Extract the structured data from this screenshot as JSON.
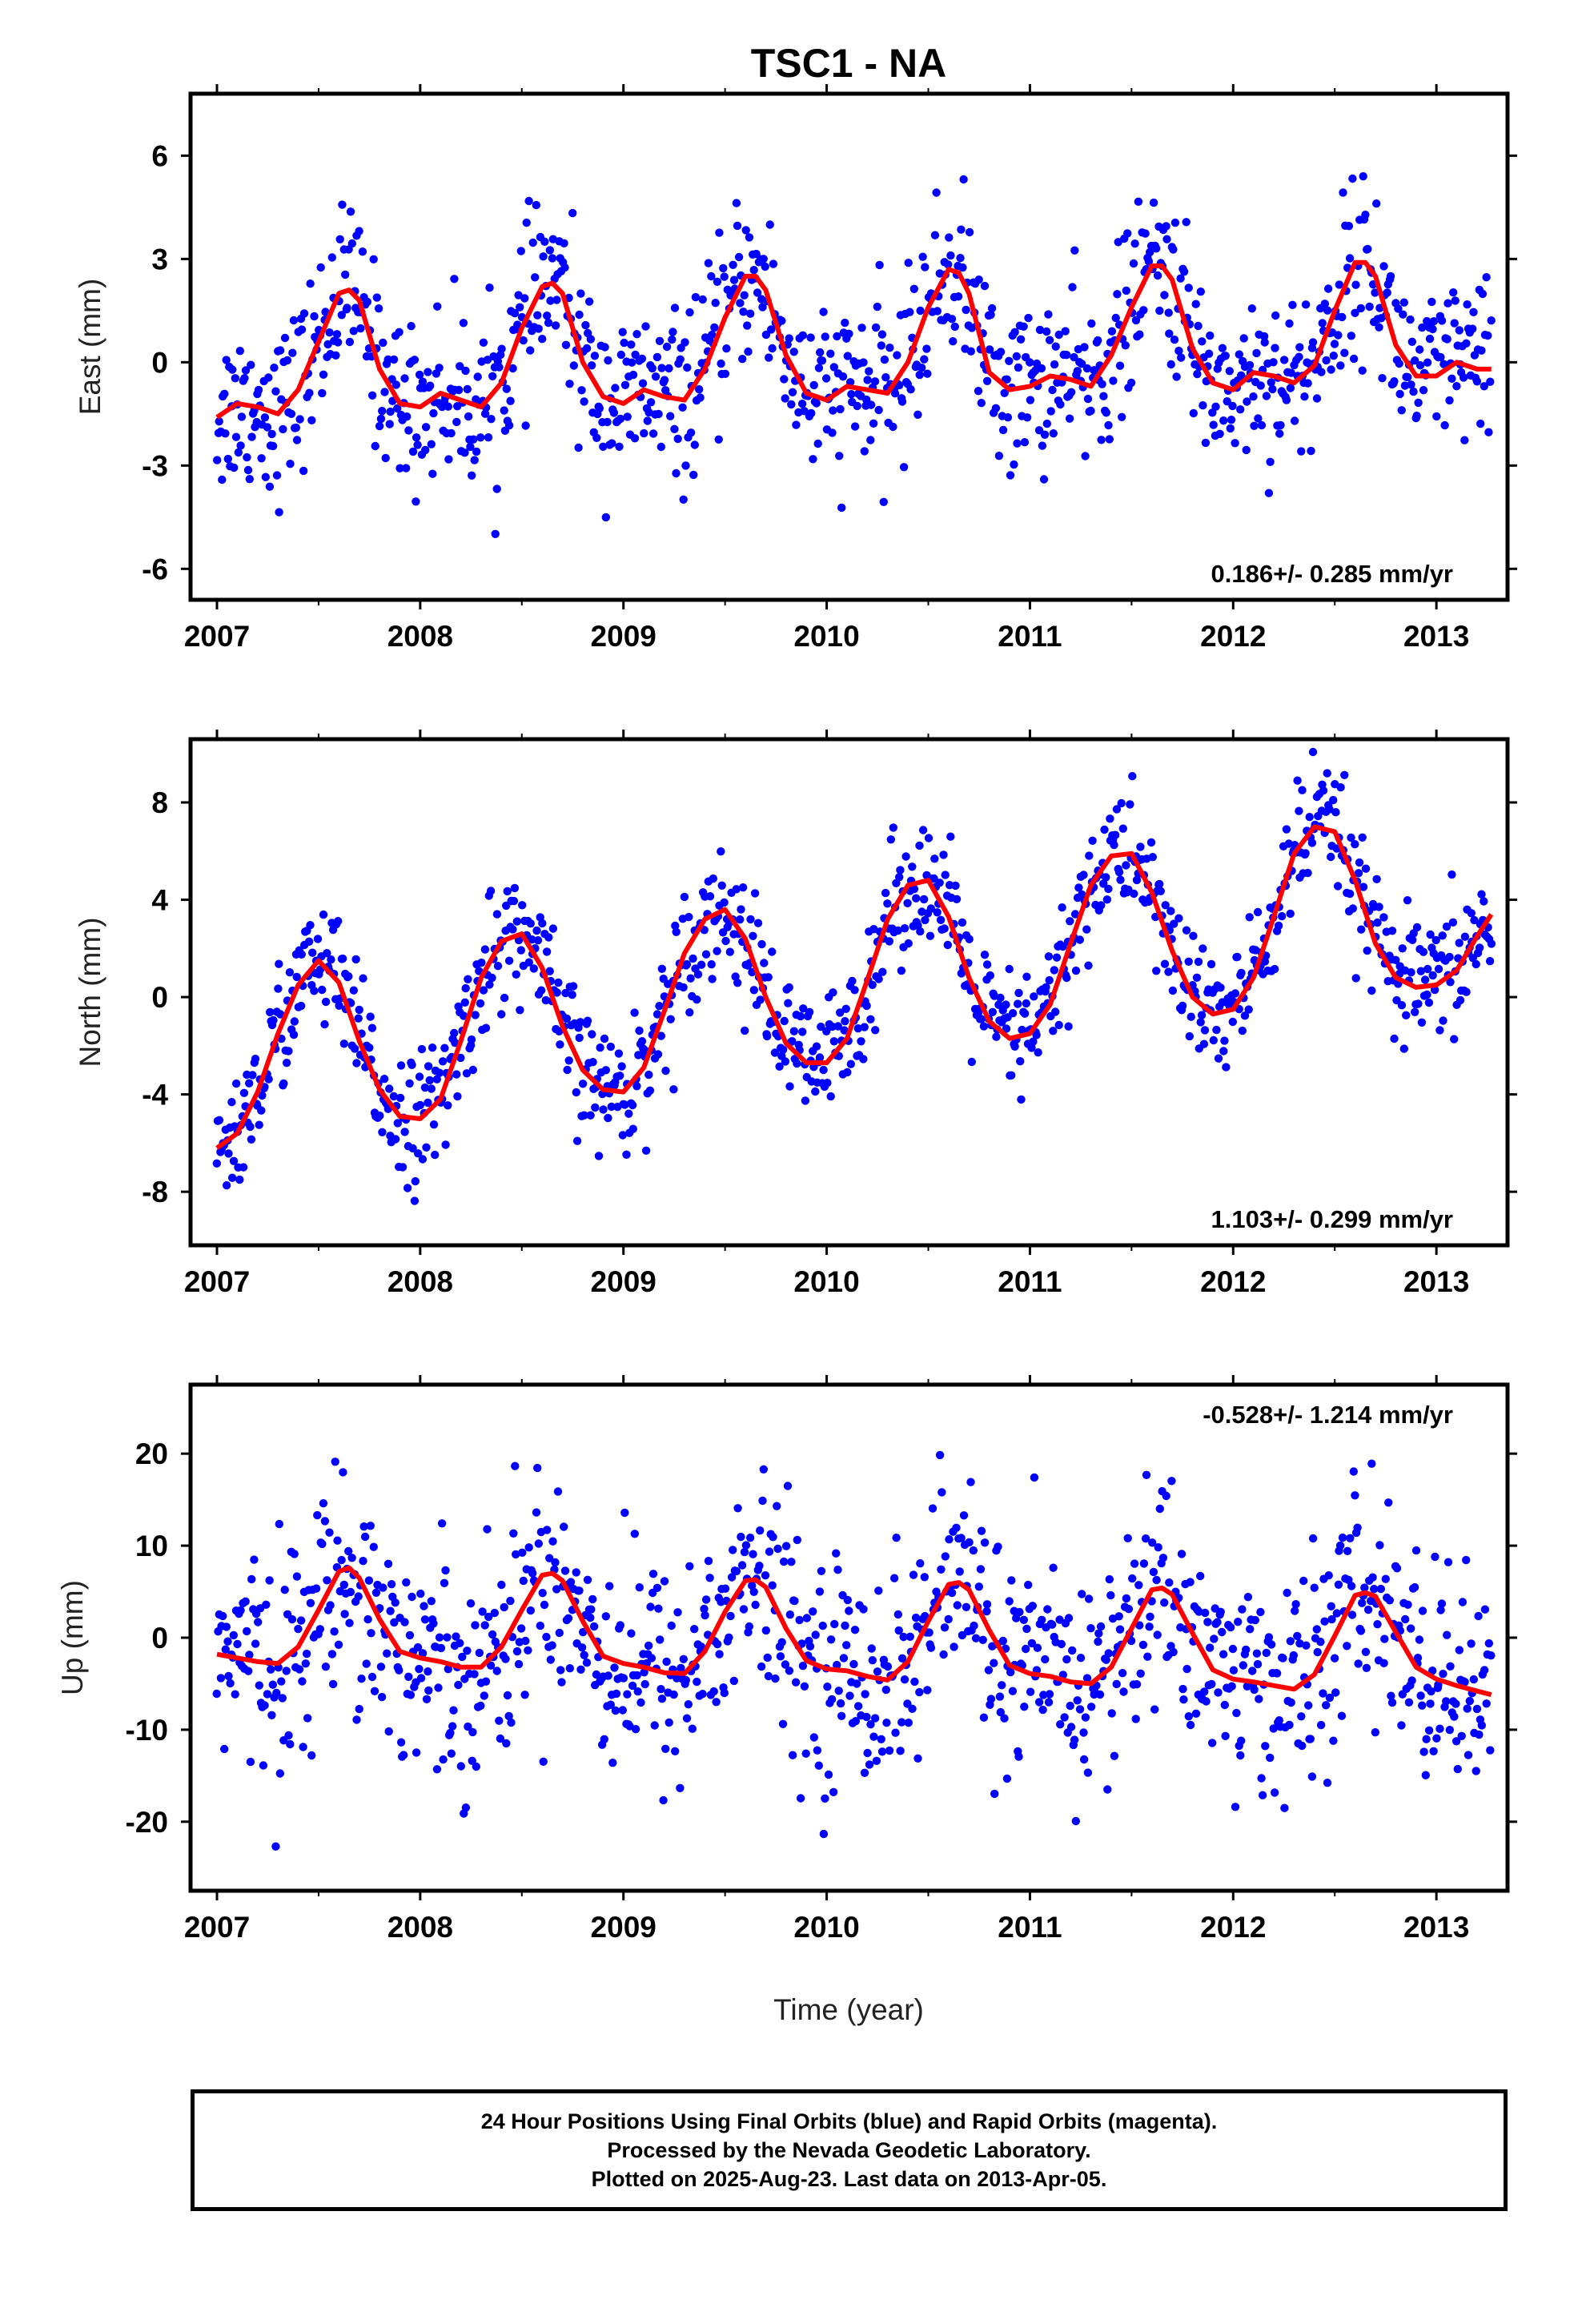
{
  "title": "TSC1 - NA",
  "xlabel": "Time (year)",
  "footer": {
    "line1": "24 Hour Positions Using Final Orbits (blue) and Rapid Orbits (magenta).",
    "line2": "Processed by the Nevada Geodetic Laboratory.",
    "line3": "Plotted on 2025-Aug-23. Last data on 2013-Apr-05."
  },
  "colors": {
    "points": "#0000ff",
    "model": "#ff0000",
    "axes": "#000000"
  },
  "chart_data": [
    {
      "type": "scatter",
      "component": "east",
      "ylabel": "East (mm)",
      "rate_label": "0.186+/- 0.285 mm/yr",
      "rate_position": "bottom-right",
      "xlim": [
        2006.87,
        2013.35
      ],
      "ylim": [
        -6.9,
        7.8
      ],
      "xticks": [
        "2007",
        "2008",
        "2009",
        "2010",
        "2011",
        "2012",
        "2013"
      ],
      "yticks": [
        "-6",
        "-3",
        "0",
        "3",
        "6"
      ],
      "model_curve": {
        "x": [
          2007.0,
          2007.1,
          2007.2,
          2007.3,
          2007.4,
          2007.5,
          2007.6,
          2007.65,
          2007.7,
          2007.8,
          2007.9,
          2008.0,
          2008.1,
          2008.2,
          2008.3,
          2008.4,
          2008.5,
          2008.6,
          2008.65,
          2008.7,
          2008.8,
          2008.9,
          2009.0,
          2009.1,
          2009.2,
          2009.3,
          2009.4,
          2009.5,
          2009.6,
          2009.65,
          2009.7,
          2009.8,
          2009.9,
          2010.0,
          2010.1,
          2010.2,
          2010.3,
          2010.4,
          2010.5,
          2010.6,
          2010.65,
          2010.7,
          2010.8,
          2010.9,
          2011.0,
          2011.1,
          2011.2,
          2011.3,
          2011.4,
          2011.5,
          2011.6,
          2011.65,
          2011.7,
          2011.8,
          2011.9,
          2012.0,
          2012.1,
          2012.2,
          2012.3,
          2012.4,
          2012.5,
          2012.6,
          2012.65,
          2012.7,
          2012.8,
          2012.9,
          2013.0,
          2013.1,
          2013.2,
          2013.27
        ],
        "y": [
          -1.6,
          -1.2,
          -1.3,
          -1.5,
          -0.8,
          0.6,
          2.0,
          2.1,
          1.8,
          -0.2,
          -1.2,
          -1.3,
          -0.9,
          -1.1,
          -1.3,
          -0.6,
          1.0,
          2.2,
          2.3,
          2.0,
          0.0,
          -1.0,
          -1.2,
          -0.8,
          -1.0,
          -1.1,
          -0.2,
          1.3,
          2.5,
          2.5,
          2.1,
          0.2,
          -0.9,
          -1.1,
          -0.7,
          -0.8,
          -0.9,
          0.0,
          1.6,
          2.7,
          2.6,
          2.0,
          -0.3,
          -0.8,
          -0.7,
          -0.4,
          -0.5,
          -0.7,
          0.2,
          1.6,
          2.8,
          2.8,
          2.4,
          0.4,
          -0.6,
          -0.8,
          -0.3,
          -0.4,
          -0.6,
          -0.1,
          1.5,
          2.9,
          2.9,
          2.5,
          0.5,
          -0.4,
          -0.4,
          0.0,
          -0.2,
          -0.2
        ]
      },
      "point_scatter": {
        "sigma_mm": 1.2,
        "points_per_year": 170,
        "start": 2007.0,
        "end": 2013.27
      }
    },
    {
      "type": "scatter",
      "component": "north",
      "ylabel": "North (mm)",
      "rate_label": "1.103+/- 0.299 mm/yr",
      "rate_position": "bottom-right",
      "xlim": [
        2006.87,
        2013.35
      ],
      "ylim": [
        -10.2,
        10.6
      ],
      "xticks": [
        "2007",
        "2008",
        "2009",
        "2010",
        "2011",
        "2012",
        "2013"
      ],
      "yticks": [
        "-8",
        "-4",
        "0",
        "4",
        "8"
      ],
      "model_curve": {
        "x": [
          2007.0,
          2007.1,
          2007.2,
          2007.3,
          2007.4,
          2007.5,
          2007.6,
          2007.7,
          2007.8,
          2007.9,
          2008.0,
          2008.1,
          2008.2,
          2008.3,
          2008.4,
          2008.5,
          2008.6,
          2008.7,
          2008.8,
          2008.9,
          2009.0,
          2009.1,
          2009.2,
          2009.3,
          2009.4,
          2009.5,
          2009.6,
          2009.7,
          2009.8,
          2009.9,
          2010.0,
          2010.1,
          2010.2,
          2010.3,
          2010.4,
          2010.5,
          2010.6,
          2010.7,
          2010.8,
          2010.9,
          2011.0,
          2011.1,
          2011.2,
          2011.3,
          2011.4,
          2011.5,
          2011.6,
          2011.7,
          2011.8,
          2011.9,
          2012.0,
          2012.1,
          2012.2,
          2012.3,
          2012.4,
          2012.5,
          2012.6,
          2012.7,
          2012.8,
          2012.9,
          2013.0,
          2013.1,
          2013.2,
          2013.27
        ],
        "y": [
          -6.2,
          -5.6,
          -3.9,
          -1.5,
          0.5,
          1.5,
          0.6,
          -1.8,
          -3.8,
          -4.9,
          -5.0,
          -4.2,
          -1.8,
          0.8,
          2.3,
          2.6,
          1.2,
          -1.2,
          -3.0,
          -3.8,
          -3.9,
          -2.9,
          -0.6,
          1.8,
          3.2,
          3.6,
          2.4,
          0.0,
          -1.9,
          -2.7,
          -2.7,
          -1.7,
          0.7,
          3.2,
          4.6,
          4.8,
          3.3,
          0.8,
          -1.0,
          -1.7,
          -1.5,
          -0.3,
          2.2,
          4.6,
          5.8,
          5.9,
          4.3,
          1.9,
          0.0,
          -0.7,
          -0.5,
          0.8,
          3.3,
          5.9,
          7.0,
          6.8,
          4.8,
          2.2,
          0.8,
          0.4,
          0.5,
          1.1,
          2.5,
          3.4
        ]
      },
      "point_scatter": {
        "sigma_mm": 1.3,
        "points_per_year": 170,
        "start": 2007.0,
        "end": 2013.27
      }
    },
    {
      "type": "scatter",
      "component": "up",
      "ylabel": "Up (mm)",
      "rate_label": "-0.528+/- 1.214 mm/yr",
      "rate_position": "top-right",
      "xlim": [
        2006.87,
        2013.35
      ],
      "ylim": [
        -27.5,
        27.5
      ],
      "xticks": [
        "2007",
        "2008",
        "2009",
        "2010",
        "2011",
        "2012",
        "2013"
      ],
      "yticks": [
        "-20",
        "-10",
        "0",
        "10",
        "20"
      ],
      "model_curve": {
        "x": [
          2007.0,
          2007.1,
          2007.2,
          2007.3,
          2007.4,
          2007.5,
          2007.6,
          2007.65,
          2007.7,
          2007.8,
          2007.9,
          2008.0,
          2008.1,
          2008.2,
          2008.3,
          2008.4,
          2008.5,
          2008.6,
          2008.65,
          2008.7,
          2008.8,
          2008.9,
          2009.0,
          2009.1,
          2009.2,
          2009.3,
          2009.4,
          2009.5,
          2009.6,
          2009.65,
          2009.7,
          2009.8,
          2009.9,
          2010.0,
          2010.1,
          2010.2,
          2010.3,
          2010.4,
          2010.5,
          2010.6,
          2010.65,
          2010.7,
          2010.8,
          2010.9,
          2011.0,
          2011.1,
          2011.2,
          2011.3,
          2011.4,
          2011.5,
          2011.6,
          2011.65,
          2011.7,
          2011.8,
          2011.9,
          2012.0,
          2012.1,
          2012.2,
          2012.3,
          2012.4,
          2012.5,
          2012.6,
          2012.65,
          2012.7,
          2012.8,
          2012.9,
          2013.0,
          2013.1,
          2013.2,
          2013.27
        ],
        "y": [
          -1.8,
          -2.2,
          -2.6,
          -2.8,
          -1.0,
          3.0,
          7.2,
          7.6,
          6.5,
          2.0,
          -1.5,
          -2.2,
          -2.6,
          -3.2,
          -3.2,
          -1.0,
          3.0,
          6.8,
          7.0,
          6.2,
          1.8,
          -2.0,
          -2.8,
          -3.2,
          -3.8,
          -3.9,
          -1.5,
          2.8,
          6.2,
          6.3,
          5.5,
          1.0,
          -2.5,
          -3.4,
          -3.6,
          -4.2,
          -4.6,
          -2.6,
          1.8,
          5.8,
          6.0,
          5.2,
          0.8,
          -3.0,
          -3.9,
          -4.2,
          -4.8,
          -5.0,
          -3.2,
          1.0,
          5.2,
          5.4,
          4.7,
          0.5,
          -3.5,
          -4.5,
          -4.8,
          -5.2,
          -5.6,
          -4.0,
          0.2,
          4.6,
          4.9,
          4.5,
          0.6,
          -3.2,
          -4.5,
          -5.2,
          -5.8,
          -6.2
        ]
      },
      "point_scatter": {
        "sigma_mm": 6.0,
        "points_per_year": 170,
        "start": 2007.0,
        "end": 2013.27
      }
    }
  ]
}
